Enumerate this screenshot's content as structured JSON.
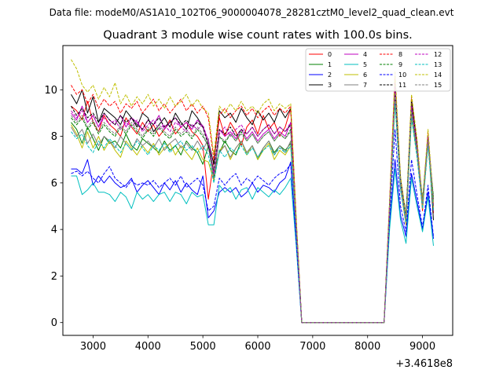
{
  "chart_data": {
    "type": "line",
    "suptitle": "Data file: modeM0/AS1A10_102T06_9000004078_28281cztM0_level2_quad_clean.evt",
    "title": "Quadrant 3 module wise count rates with 100.0s bins.",
    "xlabel": "",
    "ylabel": "",
    "x_offset_label": "+3.4618e8",
    "xlim": [
      2450,
      9550
    ],
    "ylim": [
      -0.55,
      11.9
    ],
    "xticks": [
      3000,
      4000,
      5000,
      6000,
      7000,
      8000,
      9000
    ],
    "yticks": [
      0,
      2,
      4,
      6,
      8,
      10
    ],
    "legend_position": "top-right",
    "x": [
      2600,
      2700,
      2800,
      2900,
      3000,
      3100,
      3200,
      3300,
      3400,
      3500,
      3600,
      3700,
      3800,
      3900,
      4000,
      4100,
      4200,
      4300,
      4400,
      4500,
      4600,
      4700,
      4800,
      4900,
      5000,
      5100,
      5200,
      5300,
      5400,
      5500,
      5600,
      5700,
      5800,
      5900,
      6000,
      6100,
      6200,
      6300,
      6400,
      6500,
      6600,
      6700,
      6800,
      6900,
      7000,
      7100,
      7200,
      7300,
      7400,
      7500,
      7600,
      7700,
      7800,
      7900,
      8000,
      8100,
      8200,
      8300,
      8400,
      8500,
      8600,
      8700,
      8800,
      8900,
      9000,
      9100,
      9200
    ],
    "series": [
      {
        "name": "0",
        "color": "#ff0000",
        "dash": "solid",
        "values": [
          9.3,
          9.1,
          8.7,
          9.5,
          8.6,
          8.2,
          8.9,
          8.5,
          8.3,
          8.0,
          8.8,
          8.4,
          8.1,
          8.6,
          8.2,
          8.5,
          8.0,
          8.3,
          8.7,
          8.1,
          8.4,
          8.6,
          8.2,
          8.0,
          7.6,
          5.3,
          7.0,
          8.8,
          8.0,
          8.6,
          8.2,
          7.6,
          8.4,
          8.7,
          8.1,
          8.9,
          8.3,
          8.6,
          8.0,
          8.4,
          9.2,
          4.3,
          0.0,
          0.0,
          0.0,
          0.0,
          0.0,
          0.0,
          0.0,
          0.0,
          0.0,
          0.0,
          0.0,
          0.0,
          0.0,
          0.0,
          0.0,
          0.0,
          5.0,
          10.0,
          5.8,
          4.2,
          9.2,
          7.5,
          4.8,
          7.9,
          4.7
        ]
      },
      {
        "name": "1",
        "color": "#008000",
        "dash": "solid",
        "values": [
          8.6,
          8.3,
          7.7,
          8.4,
          7.9,
          7.4,
          8.0,
          7.7,
          7.8,
          7.5,
          8.1,
          7.6,
          7.4,
          7.9,
          7.7,
          7.5,
          7.3,
          7.8,
          7.4,
          7.6,
          7.2,
          7.8,
          7.5,
          7.3,
          6.8,
          7.6,
          6.5,
          7.3,
          7.8,
          7.4,
          7.2,
          7.8,
          7.3,
          7.6,
          7.0,
          7.5,
          7.8,
          7.3,
          7.6,
          7.4,
          7.7,
          4.1,
          0.0,
          0.0,
          0.0,
          0.0,
          0.0,
          0.0,
          0.0,
          0.0,
          0.0,
          0.0,
          0.0,
          0.0,
          0.0,
          0.0,
          0.0,
          0.0,
          4.8,
          9.8,
          6.0,
          4.6,
          9.0,
          7.4,
          5.2,
          7.8,
          5.0
        ]
      },
      {
        "name": "2",
        "color": "#0000ff",
        "dash": "solid",
        "values": [
          6.6,
          6.6,
          6.4,
          7.0,
          5.9,
          6.3,
          6.0,
          6.3,
          6.0,
          5.8,
          5.9,
          6.2,
          5.6,
          5.9,
          6.1,
          5.8,
          5.5,
          6.0,
          5.7,
          6.1,
          5.6,
          6.0,
          5.7,
          5.5,
          6.3,
          4.5,
          4.8,
          5.6,
          5.8,
          5.6,
          5.8,
          5.4,
          5.6,
          6.0,
          5.6,
          5.9,
          5.8,
          5.6,
          6.0,
          6.2,
          6.9,
          3.5,
          0.0,
          0.0,
          0.0,
          0.0,
          0.0,
          0.0,
          0.0,
          0.0,
          0.0,
          0.0,
          0.0,
          0.0,
          0.0,
          0.0,
          0.0,
          0.0,
          4.2,
          7.0,
          4.6,
          3.7,
          6.4,
          5.2,
          4.0,
          5.6,
          3.6
        ]
      },
      {
        "name": "3",
        "color": "#000000",
        "dash": "solid",
        "values": [
          9.8,
          9.4,
          10.0,
          9.0,
          9.7,
          8.6,
          9.2,
          9.0,
          8.8,
          8.5,
          9.1,
          8.8,
          8.4,
          9.0,
          8.8,
          8.2,
          8.5,
          8.8,
          8.4,
          9.0,
          8.6,
          8.3,
          9.1,
          8.8,
          8.4,
          7.8,
          6.8,
          9.1,
          8.8,
          9.0,
          8.6,
          9.2,
          8.8,
          8.5,
          9.1,
          8.7,
          9.0,
          8.6,
          9.2,
          8.8,
          9.2,
          4.4,
          0.0,
          0.0,
          0.0,
          0.0,
          0.0,
          0.0,
          0.0,
          0.0,
          0.0,
          0.0,
          0.0,
          0.0,
          0.0,
          0.0,
          0.0,
          0.0,
          5.1,
          10.3,
          6.0,
          4.4,
          9.6,
          7.7,
          5.0,
          8.0,
          4.4
        ]
      },
      {
        "name": "4",
        "color": "#bf00bf",
        "dash": "solid",
        "values": [
          9.0,
          8.7,
          9.3,
          8.6,
          8.9,
          8.4,
          9.0,
          8.7,
          8.5,
          8.9,
          8.4,
          8.8,
          8.6,
          8.3,
          8.7,
          8.5,
          8.9,
          8.3,
          8.6,
          8.8,
          8.4,
          8.6,
          8.3,
          8.7,
          8.4,
          7.8,
          6.3,
          8.3,
          8.0,
          8.2,
          7.9,
          8.3,
          7.9,
          8.2,
          7.8,
          8.1,
          8.3,
          7.9,
          8.2,
          8.0,
          8.6,
          4.2,
          0.0,
          0.0,
          0.0,
          0.0,
          0.0,
          0.0,
          0.0,
          0.0,
          0.0,
          0.0,
          0.0,
          0.0,
          0.0,
          0.0,
          0.0,
          0.0,
          5.0,
          10.1,
          6.2,
          4.4,
          9.4,
          7.6,
          5.0,
          8.0,
          4.8
        ]
      },
      {
        "name": "5",
        "color": "#00bfbf",
        "dash": "solid",
        "values": [
          6.3,
          6.3,
          5.5,
          5.7,
          6.0,
          5.6,
          5.6,
          5.5,
          5.2,
          5.6,
          5.4,
          4.9,
          5.6,
          5.3,
          5.5,
          5.2,
          5.5,
          5.6,
          5.2,
          5.6,
          5.5,
          5.1,
          5.6,
          5.4,
          5.5,
          4.2,
          4.2,
          5.9,
          5.6,
          5.8,
          5.3,
          5.7,
          5.8,
          5.3,
          5.8,
          5.6,
          5.4,
          5.7,
          5.5,
          5.8,
          6.2,
          3.3,
          0.0,
          0.0,
          0.0,
          0.0,
          0.0,
          0.0,
          0.0,
          0.0,
          0.0,
          0.0,
          0.0,
          0.0,
          0.0,
          0.0,
          0.0,
          0.0,
          4.0,
          6.6,
          4.4,
          3.4,
          6.2,
          5.0,
          3.9,
          5.4,
          3.3
        ]
      },
      {
        "name": "6",
        "color": "#bfbf00",
        "dash": "solid",
        "values": [
          8.5,
          8.1,
          7.5,
          8.2,
          7.5,
          8.0,
          7.4,
          7.8,
          7.4,
          7.1,
          7.8,
          7.5,
          7.2,
          7.6,
          7.3,
          7.7,
          7.2,
          7.5,
          7.7,
          7.2,
          7.6,
          7.3,
          7.0,
          7.5,
          7.0,
          6.9,
          6.1,
          7.4,
          7.6,
          7.0,
          7.5,
          7.8,
          7.2,
          7.6,
          7.0,
          7.4,
          7.7,
          7.0,
          7.4,
          7.2,
          7.6,
          4.0,
          0.0,
          0.0,
          0.0,
          0.0,
          0.0,
          0.0,
          0.0,
          0.0,
          0.0,
          0.0,
          0.0,
          0.0,
          0.0,
          0.0,
          0.0,
          0.0,
          4.7,
          9.6,
          5.8,
          4.2,
          8.8,
          7.2,
          4.9,
          7.7,
          4.9
        ]
      },
      {
        "name": "7",
        "color": "#808080",
        "dash": "solid",
        "values": [
          8.4,
          8.0,
          8.3,
          7.7,
          8.1,
          7.6,
          8.0,
          7.8,
          7.5,
          8.0,
          7.7,
          7.4,
          7.9,
          7.6,
          7.8,
          7.5,
          7.9,
          7.4,
          7.7,
          7.9,
          7.5,
          7.7,
          7.4,
          7.8,
          7.4,
          7.9,
          6.2,
          7.3,
          7.6,
          7.1,
          7.5,
          7.8,
          7.3,
          7.6,
          7.1,
          7.5,
          7.8,
          7.2,
          7.6,
          7.3,
          7.8,
          4.0,
          0.0,
          0.0,
          0.0,
          0.0,
          0.0,
          0.0,
          0.0,
          0.0,
          0.0,
          0.0,
          0.0,
          0.0,
          0.0,
          0.0,
          0.0,
          0.0,
          4.8,
          9.7,
          5.9,
          4.4,
          9.0,
          7.3,
          5.1,
          7.8,
          5.2
        ]
      },
      {
        "name": "8",
        "color": "#ff0000",
        "dash": "dashed",
        "values": [
          10.2,
          9.8,
          10.0,
          9.4,
          9.8,
          9.2,
          9.6,
          9.3,
          9.5,
          9.0,
          9.4,
          9.2,
          9.5,
          9.0,
          9.3,
          9.6,
          9.1,
          9.4,
          9.0,
          9.3,
          9.6,
          9.1,
          9.4,
          9.0,
          9.3,
          8.8,
          7.0,
          8.9,
          9.2,
          8.8,
          9.1,
          9.3,
          8.9,
          9.2,
          8.8,
          9.1,
          9.3,
          8.9,
          9.2,
          9.0,
          9.3,
          4.4,
          0.0,
          0.0,
          0.0,
          0.0,
          0.0,
          0.0,
          0.0,
          0.0,
          0.0,
          0.0,
          0.0,
          0.0,
          0.0,
          0.0,
          0.0,
          0.0,
          5.2,
          10.6,
          6.1,
          4.5,
          9.7,
          7.8,
          5.1,
          8.2,
          5.0
        ]
      },
      {
        "name": "9",
        "color": "#008000",
        "dash": "dashed",
        "values": [
          8.8,
          8.5,
          8.8,
          8.3,
          8.6,
          8.1,
          8.5,
          8.2,
          8.0,
          8.4,
          8.1,
          8.5,
          8.2,
          7.9,
          8.3,
          8.0,
          8.4,
          8.1,
          7.9,
          8.3,
          8.0,
          8.2,
          7.9,
          8.3,
          8.0,
          7.6,
          6.2,
          8.0,
          7.7,
          8.1,
          7.8,
          8.2,
          7.8,
          8.1,
          7.7,
          8.0,
          8.2,
          7.8,
          8.1,
          7.9,
          8.3,
          4.2,
          0.0,
          0.0,
          0.0,
          0.0,
          0.0,
          0.0,
          0.0,
          0.0,
          0.0,
          0.0,
          0.0,
          0.0,
          0.0,
          0.0,
          0.0,
          0.0,
          4.9,
          9.9,
          6.1,
          4.6,
          9.2,
          7.5,
          5.3,
          7.9,
          5.4
        ]
      },
      {
        "name": "10",
        "color": "#0000ff",
        "dash": "dashed",
        "values": [
          6.4,
          6.5,
          6.3,
          6.5,
          6.2,
          6.0,
          6.4,
          6.7,
          6.2,
          6.0,
          5.8,
          6.1,
          5.9,
          6.0,
          5.9,
          6.1,
          5.8,
          6.0,
          6.2,
          5.9,
          6.3,
          5.8,
          6.0,
          6.2,
          5.9,
          4.8,
          5.0,
          6.2,
          5.9,
          6.2,
          6.4,
          5.9,
          6.2,
          6.0,
          6.3,
          6.1,
          5.9,
          6.2,
          6.4,
          6.5,
          6.8,
          3.5,
          0.0,
          0.0,
          0.0,
          0.0,
          0.0,
          0.0,
          0.0,
          0.0,
          0.0,
          0.0,
          0.0,
          0.0,
          0.0,
          0.0,
          0.0,
          0.0,
          4.4,
          8.3,
          5.0,
          3.9,
          7.0,
          5.5,
          4.1,
          5.9,
          3.7
        ]
      },
      {
        "name": "11",
        "color": "#000000",
        "dash": "dashed",
        "values": [
          9.3,
          8.9,
          9.2,
          8.8,
          9.0,
          8.6,
          9.0,
          8.7,
          8.5,
          8.9,
          8.6,
          8.8,
          8.5,
          8.3,
          8.7,
          8.5,
          8.8,
          8.4,
          8.6,
          8.8,
          8.5,
          8.7,
          8.4,
          8.6,
          8.4,
          7.6,
          6.5,
          8.3,
          8.1,
          8.4,
          8.0,
          8.3,
          8.1,
          8.4,
          8.0,
          8.3,
          8.5,
          8.1,
          8.4,
          8.2,
          8.5,
          4.3,
          0.0,
          0.0,
          0.0,
          0.0,
          0.0,
          0.0,
          0.0,
          0.0,
          0.0,
          0.0,
          0.0,
          0.0,
          0.0,
          0.0,
          0.0,
          0.0,
          5.0,
          10.2,
          6.2,
          4.6,
          9.5,
          7.6,
          5.2,
          8.0,
          5.3
        ]
      },
      {
        "name": "12",
        "color": "#bf00bf",
        "dash": "dashed",
        "values": [
          9.1,
          8.8,
          9.1,
          8.6,
          8.9,
          8.4,
          8.8,
          8.5,
          8.7,
          8.3,
          8.6,
          8.4,
          8.7,
          8.2,
          8.5,
          8.7,
          8.3,
          8.5,
          8.2,
          8.6,
          8.4,
          8.2,
          8.5,
          8.3,
          8.5,
          7.8,
          6.4,
          8.1,
          8.4,
          8.0,
          8.3,
          8.5,
          8.1,
          8.4,
          8.0,
          8.3,
          8.5,
          8.1,
          8.4,
          8.2,
          8.6,
          4.3,
          0.0,
          0.0,
          0.0,
          0.0,
          0.0,
          0.0,
          0.0,
          0.0,
          0.0,
          0.0,
          0.0,
          0.0,
          0.0,
          0.0,
          0.0,
          0.0,
          5.0,
          10.2,
          6.1,
          4.5,
          9.3,
          7.6,
          5.1,
          8.0,
          5.1
        ]
      },
      {
        "name": "13",
        "color": "#00bfbf",
        "dash": "dashed",
        "values": [
          8.2,
          7.9,
          8.1,
          7.6,
          7.3,
          7.8,
          7.5,
          7.9,
          7.6,
          7.3,
          7.7,
          7.4,
          7.8,
          7.5,
          7.2,
          7.6,
          7.4,
          7.7,
          7.3,
          7.6,
          7.8,
          7.4,
          7.6,
          7.3,
          7.6,
          7.2,
          6.0,
          7.4,
          7.1,
          7.5,
          7.3,
          7.6,
          7.2,
          7.5,
          7.1,
          7.4,
          7.6,
          7.2,
          7.5,
          7.3,
          7.6,
          4.0,
          0.0,
          0.0,
          0.0,
          0.0,
          0.0,
          0.0,
          0.0,
          0.0,
          0.0,
          0.0,
          0.0,
          0.0,
          0.0,
          0.0,
          0.0,
          0.0,
          4.7,
          9.4,
          5.7,
          4.3,
          8.8,
          7.1,
          4.9,
          7.6,
          4.8
        ]
      },
      {
        "name": "14",
        "color": "#bfbf00",
        "dash": "dashed",
        "values": [
          11.3,
          10.9,
          10.2,
          9.9,
          10.2,
          9.6,
          10.1,
          9.7,
          10.3,
          9.4,
          9.8,
          9.3,
          9.7,
          9.4,
          9.8,
          9.3,
          9.6,
          9.2,
          9.7,
          9.3,
          9.5,
          9.8,
          9.3,
          9.6,
          9.2,
          9.0,
          7.2,
          9.3,
          9.0,
          9.4,
          9.1,
          9.5,
          9.1,
          9.3,
          9.0,
          9.4,
          9.6,
          9.1,
          9.4,
          9.2,
          9.4,
          4.5,
          0.0,
          0.0,
          0.0,
          0.0,
          0.0,
          0.0,
          0.0,
          0.0,
          0.0,
          0.0,
          0.0,
          0.0,
          0.0,
          0.0,
          0.0,
          0.0,
          5.2,
          10.8,
          6.3,
          4.6,
          9.8,
          7.9,
          5.2,
          8.3,
          5.1
        ]
      },
      {
        "name": "15",
        "color": "#808080",
        "dash": "dashed",
        "values": [
          8.9,
          8.6,
          8.9,
          8.4,
          8.7,
          8.2,
          8.6,
          8.3,
          8.1,
          8.5,
          8.2,
          8.6,
          8.3,
          8.0,
          8.4,
          8.1,
          8.5,
          8.2,
          8.0,
          8.4,
          8.1,
          8.3,
          8.0,
          8.4,
          8.1,
          7.5,
          6.2,
          8.0,
          7.8,
          8.1,
          7.8,
          8.1,
          7.8,
          8.1,
          7.7,
          8.0,
          8.2,
          7.8,
          8.1,
          7.9,
          8.2,
          4.1,
          0.0,
          0.0,
          0.0,
          0.0,
          0.0,
          0.0,
          0.0,
          0.0,
          0.0,
          0.0,
          0.0,
          0.0,
          0.0,
          0.0,
          0.0,
          0.0,
          4.9,
          9.8,
          6.0,
          4.5,
          9.1,
          7.4,
          5.1,
          7.8,
          5.2
        ]
      }
    ]
  }
}
